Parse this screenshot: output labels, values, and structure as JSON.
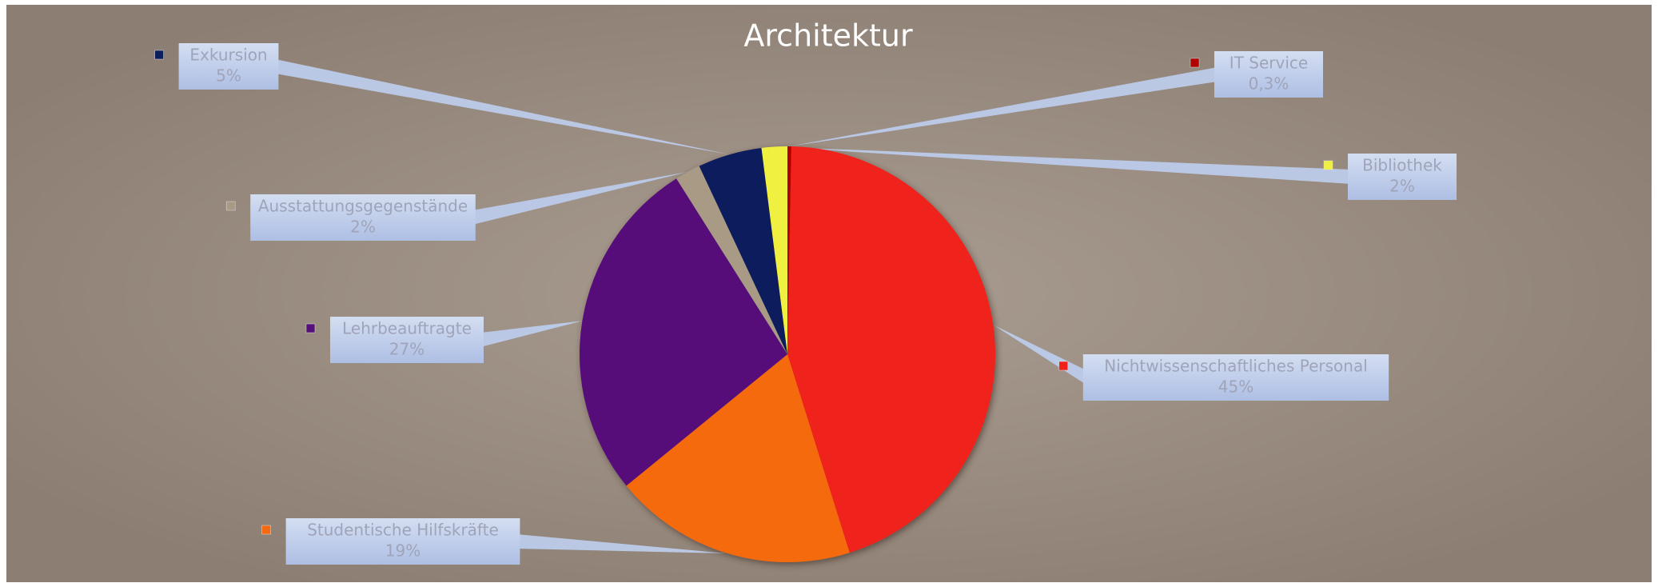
{
  "chart_data": {
    "type": "pie",
    "title": "Architektur",
    "categories": [
      "IT Service",
      "Nichtwissenschaftliches Personal",
      "Studentische Hilfskräfte",
      "Lehrbeauftragte",
      "Ausstattungsgegenstände",
      "Exkursion",
      "Bibliothek"
    ],
    "values": [
      0.3,
      45,
      19,
      27,
      2,
      5,
      2
    ],
    "value_labels": [
      "0,3%",
      "45%",
      "19%",
      "27%",
      "2%",
      "5%",
      "2%"
    ],
    "colors": [
      "#b00000",
      "#f0201a",
      "#f56a10",
      "#56107a",
      "#a89a84",
      "#0a1e5c",
      "#f0f040"
    ]
  }
}
